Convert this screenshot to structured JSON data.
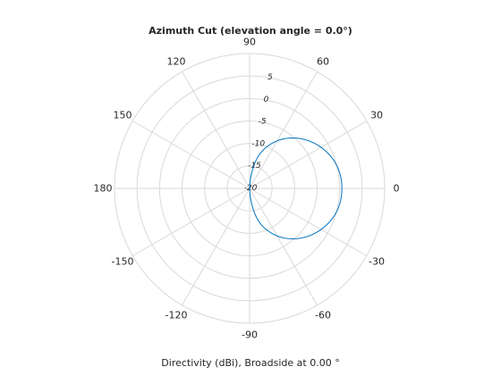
{
  "chart_data": {
    "type": "polar-line",
    "title": "Azimuth Cut (elevation angle = 0.0°)",
    "xlabel": "Directivity (dBi), Broadside at 0.00 °",
    "angle_ticks": [
      "90",
      "60",
      "30",
      "0",
      "-30",
      "-60",
      "-90",
      "-120",
      "-150",
      "180",
      "150",
      "120"
    ],
    "angle_tick_values": [
      90,
      60,
      30,
      0,
      -30,
      -60,
      -90,
      -120,
      -150,
      180,
      150,
      120
    ],
    "radial_ticks": [
      "5",
      "0",
      "-5",
      "-10",
      "-15",
      "-20"
    ],
    "radial_tick_values": [
      5,
      0,
      -5,
      -10,
      -15,
      -20
    ],
    "radial_lim": [
      -20,
      10
    ],
    "grid": true,
    "series": [
      {
        "color": "#0072BD",
        "angles_deg": [
          -90,
          -75,
          -60,
          -45,
          -30,
          -15,
          0,
          15,
          30,
          45,
          60,
          75,
          90
        ],
        "values_dbi": [
          -20,
          -12.6,
          -7.8,
          -4.3,
          -1.7,
          0.0,
          0.5,
          0.0,
          -1.7,
          -4.3,
          -7.8,
          -12.6,
          -20
        ]
      }
    ]
  }
}
